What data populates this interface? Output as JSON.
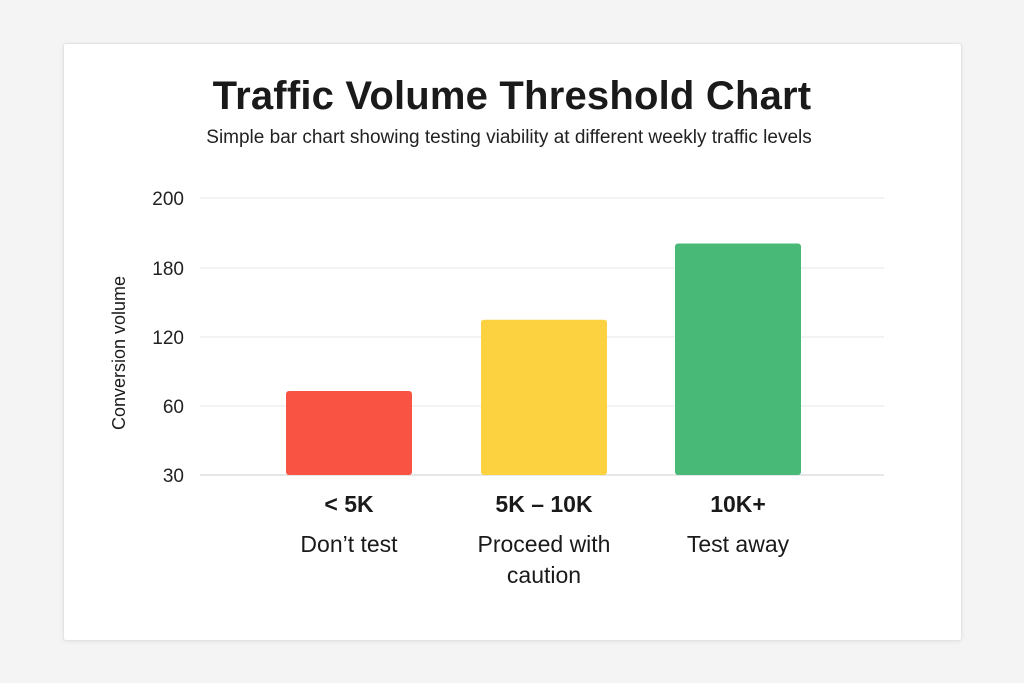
{
  "title": "Traffic Volume Threshold Chart",
  "subtitle": "Simple bar chart showing testing viability at different weekly traffic levels",
  "chart_data": {
    "type": "bar",
    "title": "Traffic Volume Threshold Chart",
    "subtitle": "Simple bar chart showing testing viability at different weekly traffic levels",
    "ylabel": "Conversion volume",
    "xlabel": "",
    "y_ticks": [
      "200",
      "180",
      "120",
      "60",
      "30"
    ],
    "categories": [
      "< 5K",
      "5K – 10K",
      "10K+"
    ],
    "category_notes": [
      [
        "Don’t test"
      ],
      [
        "Proceed with",
        "caution"
      ],
      [
        "Test away"
      ]
    ],
    "values": [
      73,
      135,
      187
    ],
    "colors": [
      "#f95343",
      "#fcd240",
      "#49b978"
    ],
    "grid": true,
    "legend": "none"
  }
}
